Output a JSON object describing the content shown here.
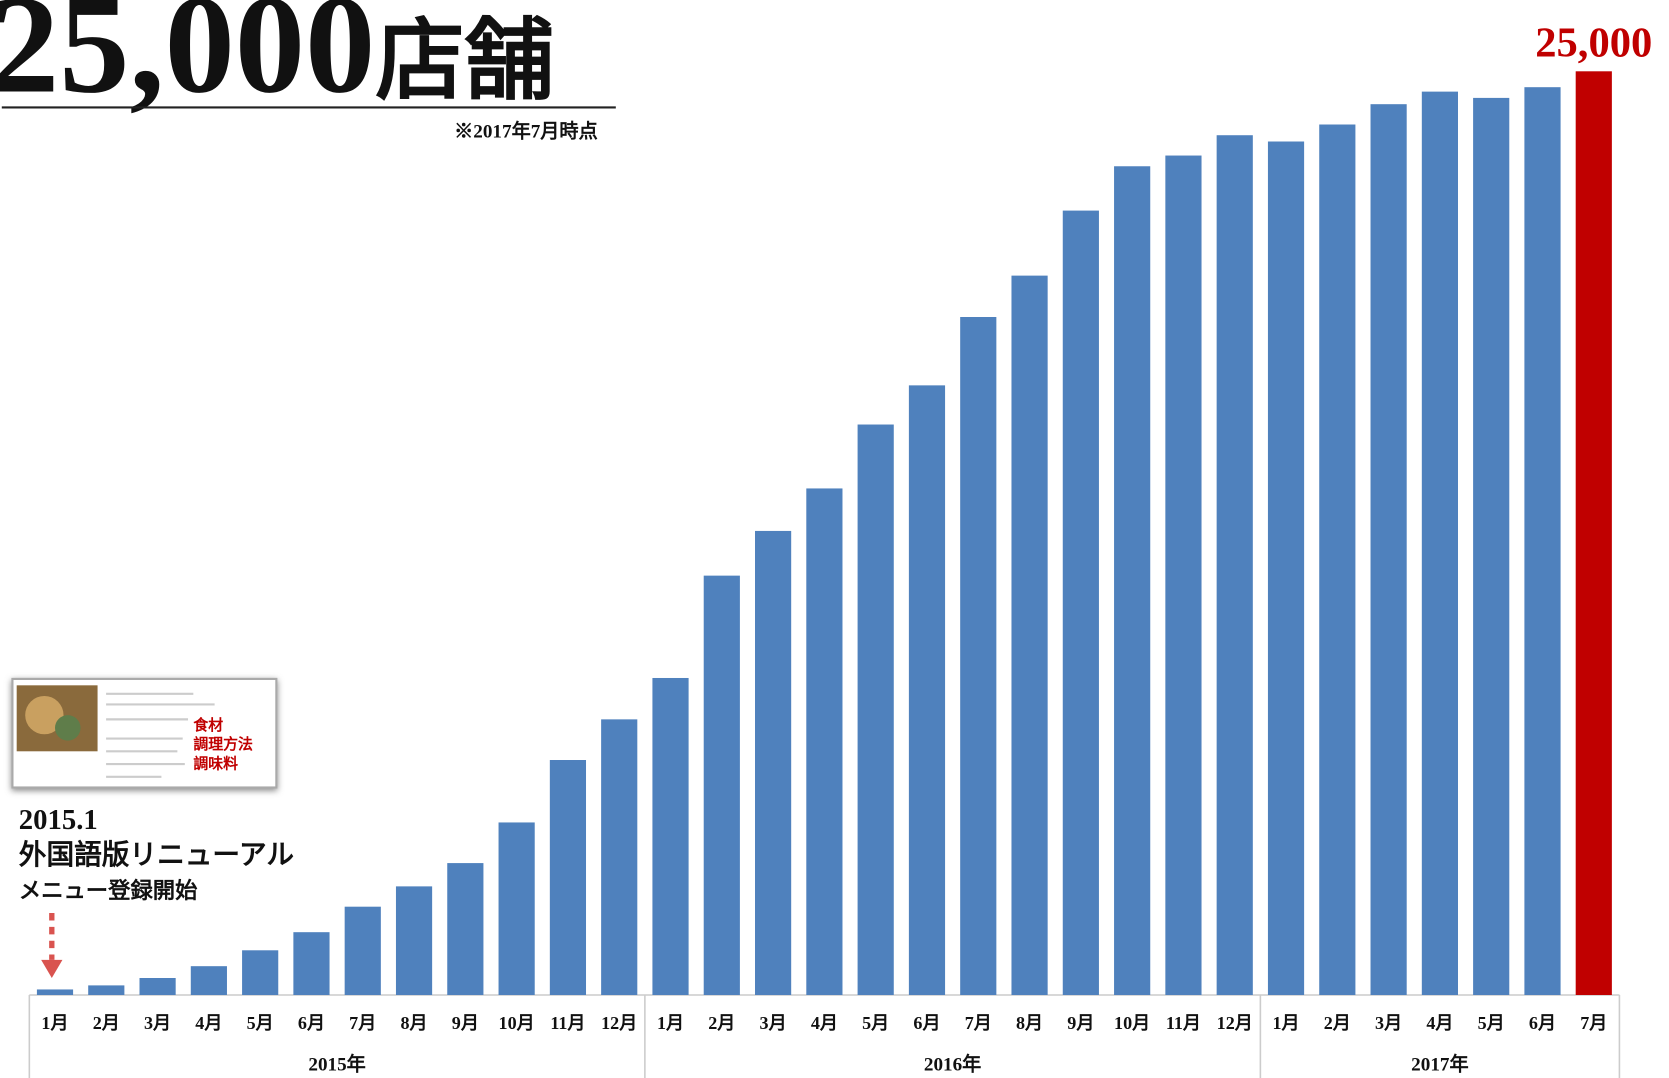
{
  "chart_data": {
    "type": "bar",
    "title": "25,000",
    "title_suffix": "店舗",
    "note": "※2017年7月時点",
    "color": "#4f81bd",
    "highlight_color": "#c00000",
    "ylim": [
      0,
      25000
    ],
    "groups": [
      {
        "label": "2015年",
        "categories": [
          "1月",
          "2月",
          "3月",
          "4月",
          "5月",
          "6月",
          "7月",
          "8月",
          "9月",
          "10月",
          "11月",
          "12月"
        ],
        "values": [
          150,
          260,
          460,
          780,
          1210,
          1700,
          2390,
          2940,
          3570,
          4670,
          6360,
          7460
        ],
        "value_labels": [
          null,
          null,
          null,
          null,
          null,
          null,
          null,
          null,
          null,
          null,
          null,
          null
        ]
      },
      {
        "label": "2016年",
        "categories": [
          "1月",
          "2月",
          "3月",
          "4月",
          "5月",
          "6月",
          "7月",
          "8月",
          "9月",
          "10月",
          "11月",
          "12月"
        ],
        "values": [
          8580,
          11350,
          12560,
          13710,
          15440,
          16500,
          18350,
          19470,
          21230,
          22430,
          22720,
          23270
        ],
        "value_labels": [
          null,
          null,
          null,
          null,
          null,
          null,
          null,
          null,
          null,
          null,
          null,
          null
        ]
      },
      {
        "label": "2017年",
        "categories": [
          "1月",
          "2月",
          "3月",
          "4月",
          "5月",
          "6月",
          "7月"
        ],
        "values": [
          23100,
          23560,
          24110,
          24450,
          24280,
          24570,
          25000
        ],
        "value_labels": [
          null,
          null,
          null,
          null,
          null,
          null,
          "25,000"
        ]
      }
    ],
    "annotation": {
      "date": "2015.1",
      "line1": "外国語版リニューアル",
      "line2": "メニュー登録開始",
      "thumbnail_labels": [
        "食材",
        "調理方法",
        "調味料"
      ]
    }
  }
}
